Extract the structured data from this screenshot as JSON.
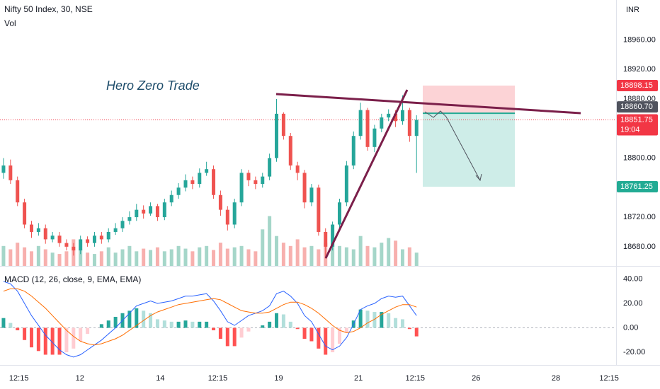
{
  "chart_data": [
    {
      "type": "candlestick",
      "title": "Nifty 50 Index, 30, NSE",
      "subtitle": "Vol",
      "currency": "INR",
      "annotation": "Hero Zero Trade",
      "xlim": [
        -0.5,
        87.5
      ],
      "ylim": [
        18654,
        19014
      ],
      "yticks": [
        {
          "value": 18680,
          "label": "18680.00"
        },
        {
          "value": 18720,
          "label": "18720.00"
        },
        {
          "value": 18800,
          "label": "18800.00"
        },
        {
          "value": 18880,
          "label": "18880.00"
        },
        {
          "value": 18920,
          "label": "18920.00"
        },
        {
          "value": 18960,
          "label": "18960.00"
        }
      ],
      "up_color": "#26a69a",
      "down_color": "#ef5350",
      "volume_up_color": "#a5d6c9",
      "volume_down_color": "#f7b0ae",
      "volume_ylim": [
        0,
        100
      ],
      "open": [
        18780,
        18790,
        18770,
        18740,
        18710,
        18700,
        18705,
        18690,
        18695,
        18685,
        18680,
        18675,
        18690,
        18685,
        18695,
        18690,
        18700,
        18705,
        18715,
        18720,
        18730,
        18725,
        18735,
        18720,
        18740,
        18750,
        18760,
        18770,
        18765,
        18780,
        18785,
        18750,
        18730,
        18710,
        18740,
        18780,
        18770,
        18765,
        18775,
        18800,
        18860,
        18830,
        18790,
        18780,
        18740,
        18760,
        18700,
        18680,
        18710,
        18740,
        18790,
        18830,
        18865,
        18815,
        18840,
        18855,
        18860,
        18850,
        18865,
        18830
      ],
      "high": [
        18800,
        18798,
        18775,
        18745,
        18715,
        18712,
        18710,
        18700,
        18700,
        18690,
        18685,
        18695,
        18694,
        18700,
        18700,
        18705,
        18712,
        18720,
        18728,
        18738,
        18736,
        18740,
        18738,
        18745,
        18756,
        18766,
        18778,
        18775,
        18786,
        18795,
        18790,
        18756,
        18735,
        18745,
        18785,
        18784,
        18775,
        18780,
        18806,
        18880,
        18862,
        18834,
        18795,
        18784,
        18765,
        18764,
        18705,
        18714,
        18745,
        18796,
        18836,
        18875,
        18868,
        18845,
        18860,
        18866,
        18865,
        18885,
        18868,
        18858
      ],
      "low": [
        18772,
        18765,
        18735,
        18705,
        18692,
        18695,
        18684,
        18686,
        18680,
        18675,
        18668,
        18670,
        18680,
        18680,
        18684,
        18686,
        18696,
        18700,
        18710,
        18715,
        18718,
        18722,
        18715,
        18716,
        18735,
        18745,
        18755,
        18758,
        18760,
        18776,
        18745,
        18722,
        18702,
        18705,
        18735,
        18762,
        18758,
        18760,
        18770,
        18795,
        18825,
        18784,
        18770,
        18732,
        18735,
        18695,
        18664,
        18675,
        18705,
        18735,
        18785,
        18825,
        18810,
        18808,
        18835,
        18850,
        18842,
        18845,
        18822,
        18780
      ],
      "close": [
        18790,
        18770,
        18740,
        18710,
        18700,
        18705,
        18690,
        18695,
        18685,
        18680,
        18675,
        18690,
        18685,
        18695,
        18690,
        18700,
        18705,
        18715,
        18720,
        18730,
        18725,
        18735,
        18720,
        18740,
        18750,
        18760,
        18770,
        18765,
        18780,
        18785,
        18750,
        18730,
        18710,
        18740,
        18780,
        18770,
        18765,
        18775,
        18800,
        18860,
        18830,
        18790,
        18780,
        18740,
        18760,
        18700,
        18680,
        18710,
        18740,
        18790,
        18830,
        18865,
        18815,
        18840,
        18855,
        18860,
        18850,
        18865,
        18830,
        18851.75
      ],
      "volume": [
        30,
        25,
        35,
        28,
        22,
        30,
        25,
        20,
        18,
        22,
        40,
        25,
        20,
        18,
        22,
        28,
        20,
        25,
        30,
        22,
        26,
        24,
        28,
        22,
        25,
        30,
        26,
        22,
        28,
        30,
        24,
        35,
        26,
        28,
        30,
        25,
        22,
        55,
        75,
        45,
        35,
        30,
        40,
        28,
        30,
        25,
        35,
        40,
        30,
        28,
        25,
        45,
        30,
        28,
        35,
        42,
        38,
        25,
        28,
        20
      ],
      "last_price": 18851.75,
      "countdown": "19:04",
      "position": {
        "stop": 18898.15,
        "entry": {
          "value": 18860.7,
          "label": "18860.70"
        },
        "target": 18761.25,
        "stop_color": "#f23645",
        "entry_color": "#50535e",
        "target_color": "#22ab94"
      }
    },
    {
      "type": "macd",
      "title": "MACD (12, 26, close, 9, EMA, EMA)",
      "xlim": [
        -0.5,
        87.5
      ],
      "ylim": [
        -30.4,
        50.1
      ],
      "yticks": [
        {
          "value": 40,
          "label": "40.00"
        },
        {
          "value": 20,
          "label": "20.00"
        },
        {
          "value": 0,
          "label": "0.00"
        },
        {
          "value": -20,
          "label": "-20.00"
        }
      ],
      "xticks": [
        {
          "value": 2.2,
          "label": "12:15"
        },
        {
          "value": 10.9,
          "label": "12"
        },
        {
          "value": 22.4,
          "label": "14"
        },
        {
          "value": 30.6,
          "label": "12:15"
        },
        {
          "value": 39.3,
          "label": "19"
        },
        {
          "value": 50.7,
          "label": "21"
        },
        {
          "value": 58.8,
          "label": "12:15"
        },
        {
          "value": 67.5,
          "label": "26"
        },
        {
          "value": 78.9,
          "label": "28"
        },
        {
          "value": 86.5,
          "label": "12:15"
        }
      ],
      "macd_color": "#2962ff",
      "signal_color": "#ff6d00",
      "macd": [
        38,
        36,
        30,
        20,
        10,
        2,
        -6,
        -12,
        -18,
        -22,
        -24,
        -22,
        -18,
        -14,
        -10,
        -5,
        0,
        6,
        12,
        18,
        20,
        22,
        20,
        21,
        22,
        24,
        26,
        26,
        27,
        28,
        22,
        14,
        5,
        2,
        6,
        10,
        12,
        14,
        18,
        28,
        30,
        26,
        20,
        10,
        5,
        -5,
        -15,
        -18,
        -15,
        -8,
        3,
        15,
        18,
        20,
        24,
        26,
        25,
        26,
        18,
        10
      ],
      "signal": [
        30,
        32,
        32,
        30,
        26,
        21,
        16,
        10,
        4,
        -2,
        -7,
        -11,
        -13,
        -14,
        -13,
        -11,
        -9,
        -6,
        -2,
        2,
        6,
        10,
        13,
        15,
        17,
        19,
        20,
        21,
        22,
        23,
        24,
        23,
        20,
        17,
        14,
        13,
        12,
        12,
        13,
        16,
        19,
        21,
        21,
        19,
        16,
        12,
        7,
        2,
        -2,
        -4,
        -3,
        0,
        4,
        7,
        11,
        14,
        17,
        19,
        19,
        17
      ],
      "histogram": [
        8,
        4,
        -2,
        -10,
        -16,
        -19,
        -22,
        -22,
        -22,
        -20,
        -17,
        -11,
        -5,
        0,
        3,
        6,
        9,
        12,
        14,
        16,
        14,
        12,
        7,
        6,
        5,
        5,
        6,
        5,
        5,
        5,
        -2,
        -9,
        -15,
        -15,
        -8,
        -3,
        0,
        2,
        5,
        12,
        11,
        5,
        -1,
        -9,
        -11,
        -17,
        -22,
        -20,
        -13,
        -4,
        6,
        15,
        14,
        13,
        13,
        12,
        8,
        7,
        -1,
        -7
      ]
    }
  ]
}
